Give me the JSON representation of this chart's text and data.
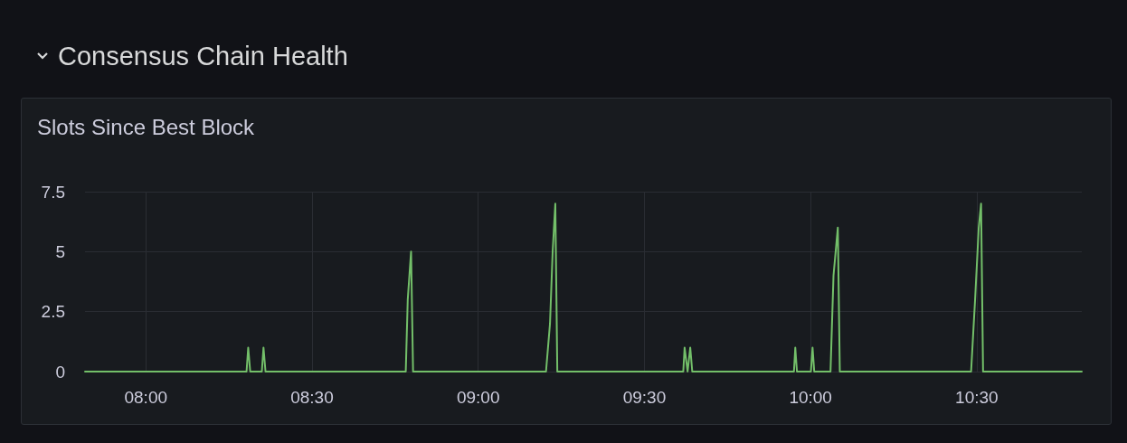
{
  "chart_data": {
    "type": "line",
    "title": "Consensus Chain Health",
    "subtitle": "Slots Since Best Block",
    "x": [
      7.817,
      8.303,
      8.308,
      8.314,
      8.349,
      8.354,
      8.36,
      8.782,
      8.788,
      8.798,
      8.804,
      9.204,
      9.216,
      9.224,
      9.232,
      9.238,
      9.617,
      9.621,
      9.63,
      9.638,
      9.644,
      9.95,
      9.954,
      9.959,
      10.001,
      10.006,
      10.011,
      10.06,
      10.069,
      10.082,
      10.088,
      10.483,
      10.495,
      10.506,
      10.513,
      10.519,
      10.816
    ],
    "series": [
      {
        "color": "#73bf69",
        "values": [
          0,
          0,
          1,
          0,
          0,
          1,
          0,
          0,
          3,
          5,
          0,
          0,
          2,
          5,
          7,
          0,
          0,
          1,
          0,
          1,
          0,
          0,
          1,
          0,
          0,
          1,
          0,
          0,
          4,
          6,
          0,
          0,
          3,
          6,
          7,
          0,
          0
        ]
      }
    ],
    "xlim": [
      7.817,
      10.816
    ],
    "xticks": [
      {
        "value": 8,
        "label": "08:00"
      },
      {
        "value": 8.5,
        "label": "08:30"
      },
      {
        "value": 9,
        "label": "09:00"
      },
      {
        "value": 9.5,
        "label": "09:30"
      },
      {
        "value": 10,
        "label": "10:00"
      },
      {
        "value": 10.5,
        "label": "10:30"
      }
    ],
    "ylim": [
      0,
      7.5
    ],
    "yticks": [
      0,
      2.5,
      5,
      7.5
    ],
    "grid": true,
    "marker": "none",
    "line_style": "solid"
  }
}
